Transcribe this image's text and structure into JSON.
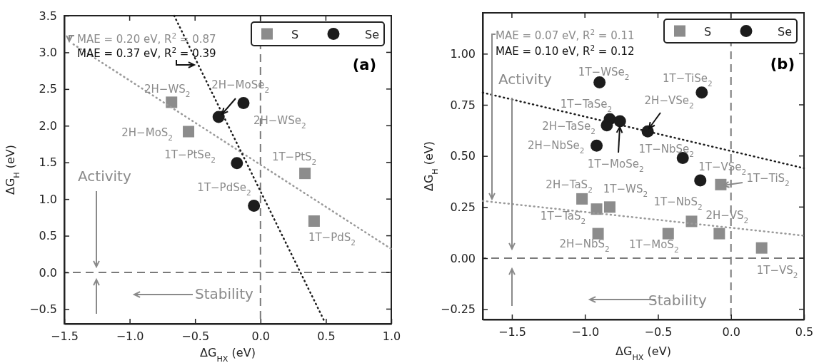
{
  "chart_data": [
    {
      "type": "scatter",
      "xlabel": "ΔG$_{HX}$ (eV)",
      "ylabel": "ΔG$_{H}$ (eV)",
      "xlim": [
        -1.5,
        1.0
      ],
      "ylim": [
        -0.7,
        3.5
      ],
      "xticks": [
        {
          "value": -1.5,
          "label": "−1.5"
        },
        {
          "value": -1.0,
          "label": "−1.0"
        },
        {
          "value": -0.5,
          "label": "−0.5"
        },
        {
          "value": 0,
          "label": "0.0"
        },
        {
          "value": 0.5,
          "label": "0.5"
        },
        {
          "value": 1.0,
          "label": "1.0"
        }
      ],
      "yticks": [
        {
          "value": -0.5,
          "label": "−0.5"
        },
        {
          "value": 0,
          "label": "0.0"
        },
        {
          "value": 0.5,
          "label": "0.5"
        },
        {
          "value": 1.0,
          "label": "1.0"
        },
        {
          "value": 1.5,
          "label": "1.5"
        },
        {
          "value": 2.0,
          "label": "2.0"
        },
        {
          "value": 2.5,
          "label": "2.5"
        },
        {
          "value": 3.0,
          "label": "3.0"
        },
        {
          "value": 3.5,
          "label": "3.5"
        }
      ],
      "legend": "top right",
      "series": [
        {
          "name": "S",
          "color": "#8c8c8c",
          "marker": "square",
          "x": [
            -0.68,
            -0.55,
            0.34,
            0.41
          ],
          "values": [
            2.32,
            1.92,
            1.35,
            0.7
          ]
        },
        {
          "name": "Se",
          "color": "#1c1c1c",
          "marker": "circle",
          "x": [
            -0.32,
            -0.13,
            -0.18,
            -0.05
          ],
          "values": [
            2.12,
            2.31,
            1.49,
            0.91
          ]
        },
        {
          "type": "line",
          "color": "#9a9a9a",
          "line_style": "dotted",
          "x": [
            -1.43,
            1.0
          ],
          "values": [
            3.11,
            0.32
          ]
        },
        {
          "type": "line",
          "color": "#1c1c1c",
          "line_style": "dotted",
          "x": [
            -0.66,
            0.49
          ],
          "values": [
            3.5,
            -0.67
          ]
        }
      ],
      "ref_lines": [
        {
          "axis": "x",
          "value": 0,
          "color": "#7a7a7a",
          "line_style": "dashed"
        },
        {
          "axis": "y",
          "value": 0,
          "color": "#7a7a7a",
          "line_style": "dashed"
        }
      ],
      "annotations": [
        "MAE = 0.20 eV, R$^{2}$ = 0.87",
        "MAE = 0.37 eV, R$^{2}$ = 0.39",
        "(a)",
        "Activity",
        "Stability",
        {
          "text": "2H−WS$_{2}$",
          "x": -0.68,
          "y": 2.32
        },
        {
          "text": "2H−MoS$_{2}$",
          "x": -0.55,
          "y": 1.92
        },
        {
          "text": "1T−PtSe$_{2}$",
          "x": -0.18,
          "y": 1.49
        },
        {
          "text": "2H−MoSe$_{2}$",
          "x": -0.32,
          "y": 2.12
        },
        {
          "text": "2H−WSe$_{2}$",
          "x": -0.13,
          "y": 2.31
        },
        {
          "text": "1T−PtS$_{2}$",
          "x": 0.34,
          "y": 1.35
        },
        {
          "text": "1T−PdSe$_{2}$",
          "x": -0.05,
          "y": 0.91
        },
        {
          "text": "1T−PdS$_{2}$",
          "x": 0.41,
          "y": 0.7
        }
      ]
    },
    {
      "type": "scatter",
      "xlabel": "ΔG$_{HX}$ (eV)",
      "ylabel": "ΔG$_{H}$ (eV)",
      "xlim": [
        -1.7,
        0.5
      ],
      "ylim": [
        -0.3,
        1.2
      ],
      "xticks": [
        {
          "value": -1.5,
          "label": "−1.5"
        },
        {
          "value": -1.0,
          "label": "−1.0"
        },
        {
          "value": -0.5,
          "label": "−0.5"
        },
        {
          "value": 0,
          "label": "0.0"
        },
        {
          "value": 0.5,
          "label": "0.5"
        }
      ],
      "yticks": [
        {
          "value": -0.25,
          "label": "−0.25"
        },
        {
          "value": 0,
          "label": "0.00"
        },
        {
          "value": 0.25,
          "label": "0.25"
        },
        {
          "value": 0.5,
          "label": "0.50"
        },
        {
          "value": 0.75,
          "label": "0.75"
        },
        {
          "value": 1.0,
          "label": "1.00"
        }
      ],
      "legend": "top right",
      "series": [
        {
          "name": "S",
          "color": "#8c8c8c",
          "marker": "square",
          "x": [
            -0.07,
            -1.02,
            -0.92,
            -0.83,
            -0.27,
            -0.91,
            -0.43,
            -0.08,
            0.21
          ],
          "values": [
            0.36,
            0.29,
            0.24,
            0.25,
            0.18,
            0.12,
            0.12,
            0.12,
            0.05
          ]
        },
        {
          "name": "Se",
          "color": "#1c1c1c",
          "marker": "circle",
          "x": [
            -0.9,
            -0.2,
            -0.83,
            -0.85,
            -0.76,
            -0.57,
            -0.92,
            -0.33,
            -0.21
          ],
          "values": [
            0.86,
            0.81,
            0.68,
            0.65,
            0.67,
            0.62,
            0.55,
            0.49,
            0.38
          ]
        },
        {
          "type": "line",
          "color": "#9a9a9a",
          "line_style": "dotted",
          "x": [
            -1.7,
            0.5
          ],
          "values": [
            0.28,
            0.11
          ]
        },
        {
          "type": "line",
          "color": "#1c1c1c",
          "line_style": "dotted",
          "x": [
            -1.7,
            0.5
          ],
          "values": [
            0.81,
            0.44
          ]
        }
      ],
      "ref_lines": [
        {
          "axis": "x",
          "value": 0,
          "color": "#7a7a7a",
          "line_style": "dashed"
        },
        {
          "axis": "y",
          "value": 0,
          "color": "#7a7a7a",
          "line_style": "dashed"
        }
      ],
      "annotations": [
        "MAE = 0.07 eV, R$^{2}$ = 0.11",
        "MAE = 0.10 eV, R$^{2}$ = 0.12",
        "(b)",
        "Activity",
        "Stability",
        {
          "text": "1T−WSe$_{2}$",
          "x": -0.9,
          "y": 0.86
        },
        {
          "text": "1T−TiSe$_{2}$",
          "x": -0.2,
          "y": 0.81
        },
        {
          "text": "2H−VSe$_{2}$",
          "x": -0.57,
          "y": 0.62
        },
        {
          "text": "1T−TaSe$_{2}$",
          "x": -0.83,
          "y": 0.68
        },
        {
          "text": "2H−TaSe$_{2}$",
          "x": -0.85,
          "y": 0.65
        },
        {
          "text": "2H−NbSe$_{2}$",
          "x": -0.92,
          "y": 0.55
        },
        {
          "text": "1T−MoSe$_{2}$",
          "x": -0.76,
          "y": 0.67
        },
        {
          "text": "1T−NbSe$_{2}$",
          "x": -0.33,
          "y": 0.49
        },
        {
          "text": "1T−VSe$_{2}$",
          "x": -0.21,
          "y": 0.38
        },
        {
          "text": "1T−TiS$_{2}$",
          "x": -0.07,
          "y": 0.36
        },
        {
          "text": "2H−TaS$_{2}$",
          "x": -1.02,
          "y": 0.29
        },
        {
          "text": "1T−WS$_{2}$",
          "x": -0.83,
          "y": 0.25
        },
        {
          "text": "1T−TaS$_{2}$",
          "x": -0.92,
          "y": 0.24
        },
        {
          "text": "1T−NbS$_{2}$",
          "x": -0.27,
          "y": 0.18
        },
        {
          "text": "2H−VS$_{2}$",
          "x": -0.08,
          "y": 0.12
        },
        {
          "text": "2H−NbS$_{2}$",
          "x": -0.91,
          "y": 0.12
        },
        {
          "text": "1T−MoS$_{2}$",
          "x": -0.43,
          "y": 0.12
        },
        {
          "text": "1T−VS$_{2}$",
          "x": 0.21,
          "y": 0.05
        }
      ]
    }
  ]
}
